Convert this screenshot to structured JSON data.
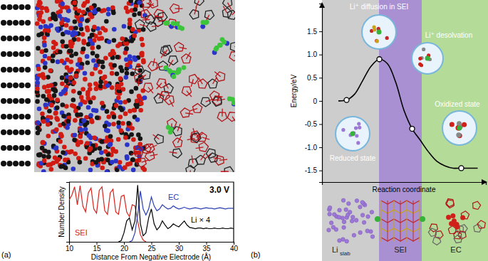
{
  "chart_data": [
    {
      "type": "line",
      "title": "(a)",
      "x_label": "Distance From Negative Electrode (Å)",
      "y_label": "Number Density",
      "annotations": [
        "3.0 V"
      ],
      "x": [
        10,
        10.5,
        11,
        11.5,
        12,
        12.5,
        13,
        13.5,
        14,
        14.5,
        15,
        15.5,
        16,
        16.5,
        17,
        17.5,
        18,
        18.5,
        19,
        19.5,
        20,
        20.5,
        21,
        21.5,
        22,
        22.5,
        23,
        23.5,
        24,
        24.5,
        25,
        25.5,
        26,
        26.5,
        27,
        27.5,
        28,
        28.5,
        29,
        29.5,
        30,
        30.5,
        31,
        31.5,
        32,
        32.5,
        33,
        33.5,
        34,
        34.5,
        35,
        35.5,
        36,
        36.5,
        37,
        37.5,
        38,
        38.5,
        39,
        39.5,
        40
      ],
      "series": [
        {
          "name": "SEI",
          "color": "#d9221c",
          "values": [
            0.7,
            0.78,
            0.92,
            0.62,
            0.94,
            0.6,
            0.5,
            0.82,
            0.9,
            0.55,
            0.48,
            0.86,
            0.92,
            0.52,
            0.46,
            0.82,
            0.88,
            0.5,
            0.46,
            0.76,
            0.78,
            0.5,
            0.42,
            0.62,
            0.6,
            0.35,
            0.12,
            0.03,
            0,
            null,
            null,
            null,
            null,
            null,
            null,
            null,
            null,
            null,
            null,
            null,
            null,
            null,
            null,
            null,
            null,
            null,
            null,
            null,
            null,
            null,
            null,
            null,
            null,
            null,
            null,
            null,
            null,
            null,
            null,
            null,
            null
          ]
        },
        {
          "name": "EC",
          "color": "#2b3fb5",
          "values": [
            null,
            null,
            null,
            null,
            null,
            null,
            null,
            null,
            null,
            null,
            null,
            null,
            null,
            null,
            null,
            null,
            null,
            null,
            null,
            null,
            null,
            null,
            0,
            0.02,
            0.15,
            0.45,
            0.85,
            0.55,
            0.45,
            0.55,
            0.75,
            0.6,
            0.52,
            0.55,
            0.62,
            0.58,
            0.55,
            0.56,
            0.6,
            0.57,
            0.55,
            0.56,
            0.58,
            0.56,
            0.55,
            0.56,
            0.57,
            0.56,
            0.55,
            0.56,
            0.57,
            0.56,
            0.56,
            0.55,
            0.56,
            0.57,
            0.56,
            0.55,
            0.56,
            0.56,
            0.56
          ]
        },
        {
          "name": "Li × 4",
          "color": "#000000",
          "values": [
            null,
            null,
            null,
            null,
            null,
            null,
            null,
            null,
            null,
            null,
            null,
            null,
            null,
            null,
            null,
            null,
            null,
            null,
            0,
            0.02,
            0.15,
            0.35,
            0.4,
            0.2,
            0.35,
            0.95,
            0.3,
            0.1,
            0.15,
            0.4,
            0.55,
            0.3,
            0.2,
            0.25,
            0.35,
            0.28,
            0.22,
            0.25,
            0.3,
            0.27,
            0.25,
            0.3,
            0.35,
            0.28,
            0.24,
            0.23,
            0.22,
            0.23,
            0.23,
            0.22,
            0.23,
            0.22,
            0.22,
            0.23,
            0.22,
            0.22,
            0.23,
            0.22,
            0.22,
            0.23,
            0.22
          ]
        }
      ],
      "xlim": [
        10,
        40
      ],
      "xticks": [
        10,
        15,
        20,
        25,
        30,
        35,
        40
      ],
      "ylim": [
        0,
        1
      ],
      "yticks": [],
      "tick_labels": "x"
    },
    {
      "type": "line",
      "title": "(b)",
      "x_label": "Reaction coordinate",
      "y_label": "Energy/eV",
      "annotations": [
        "Li⁺ diffusion in SEI",
        "Li⁺ desolvation",
        "Oxidized state",
        "Reduced state",
        "Li",
        "slab",
        "SEI",
        "EC"
      ],
      "x": [
        0.1,
        0.15,
        0.2,
        0.25,
        0.3,
        0.35,
        0.4,
        0.45,
        0.5,
        0.55,
        0.6,
        0.65,
        0.7,
        0.75,
        0.8,
        0.85,
        0.9,
        0.95
      ],
      "series": [
        {
          "color": "#000000",
          "values": [
            0,
            0.02,
            0.15,
            0.45,
            0.75,
            0.9,
            0.8,
            0.4,
            -0.2,
            -0.6,
            -0.85,
            -1.1,
            -1.3,
            -1.4,
            -1.45,
            -1.45,
            -1.45,
            -1.45
          ]
        },
        {
          "type": "scatter",
          "marker": "circle",
          "color": "#000000",
          "values": [
            null,
            0.02,
            null,
            null,
            null,
            0.9,
            null,
            null,
            null,
            -0.6,
            null,
            null,
            null,
            null,
            null,
            -1.45,
            null,
            null
          ]
        }
      ],
      "xlim": [
        0,
        1
      ],
      "xticks": [],
      "ylim": [
        -1.75,
        2.1
      ],
      "yticks": [
        -1.5,
        {
          "value": -1,
          "label": "-1.0"
        },
        -0.5,
        0,
        0.5,
        {
          "value": 1,
          "label": "1.0"
        },
        1.5
      ],
      "tick_labels": "y"
    }
  ]
}
